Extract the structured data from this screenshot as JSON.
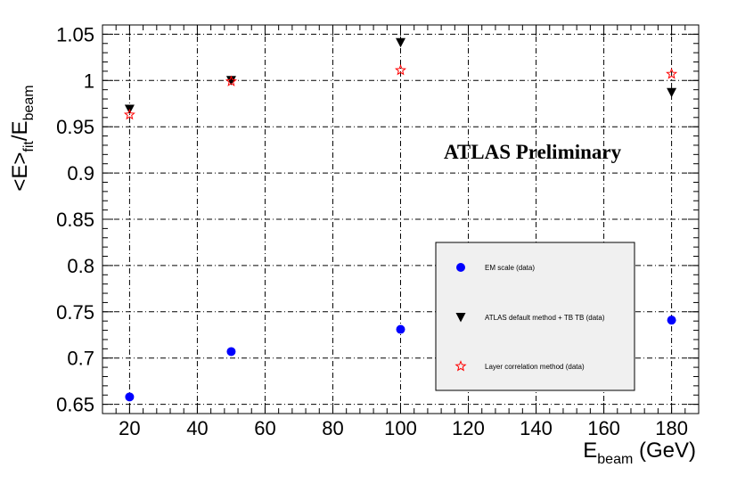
{
  "chart_data": {
    "type": "scatter",
    "title": "",
    "xlabel": {
      "main": "E",
      "sub": "beam",
      "unit": " (GeV)"
    },
    "ylabel": {
      "p1": "<E>",
      "sub1": "fit",
      "p2": "/E",
      "sub2": "beam"
    },
    "xlim": [
      12,
      188
    ],
    "ylim": [
      0.64,
      1.06
    ],
    "x_ticks": [
      20,
      40,
      60,
      80,
      100,
      120,
      140,
      160,
      180
    ],
    "x_tick_labels": [
      "20",
      "40",
      "60",
      "80",
      "100",
      "120",
      "140",
      "160",
      "180"
    ],
    "y_ticks": [
      0.65,
      0.7,
      0.75,
      0.8,
      0.85,
      0.9,
      0.95,
      1.0,
      1.05
    ],
    "y_tick_labels": [
      "0.65",
      "0.7",
      "0.75",
      "0.8",
      "0.85",
      "0.9",
      "0.95",
      "1",
      "1.05"
    ],
    "grid": true,
    "legend_position": "bottom-right",
    "series": [
      {
        "name": "EM scale (data)",
        "marker": "circle",
        "color": "#0000ff",
        "x": [
          20,
          50,
          100,
          180
        ],
        "y": [
          0.658,
          0.707,
          0.731,
          0.741
        ]
      },
      {
        "name": "ATLAS default method + TB TB (data)",
        "marker": "triangle-down",
        "color": "#000000",
        "x": [
          20,
          50,
          100,
          180
        ],
        "y": [
          0.969,
          1.0,
          1.041,
          0.987
        ]
      },
      {
        "name": "Layer correlation method (data)",
        "marker": "open-star",
        "color": "#ff0000",
        "x": [
          20,
          50,
          100,
          180
        ],
        "y": [
          0.963,
          0.999,
          1.011,
          1.007
        ]
      }
    ],
    "annotations": [
      "ATLAS Preliminary"
    ]
  }
}
